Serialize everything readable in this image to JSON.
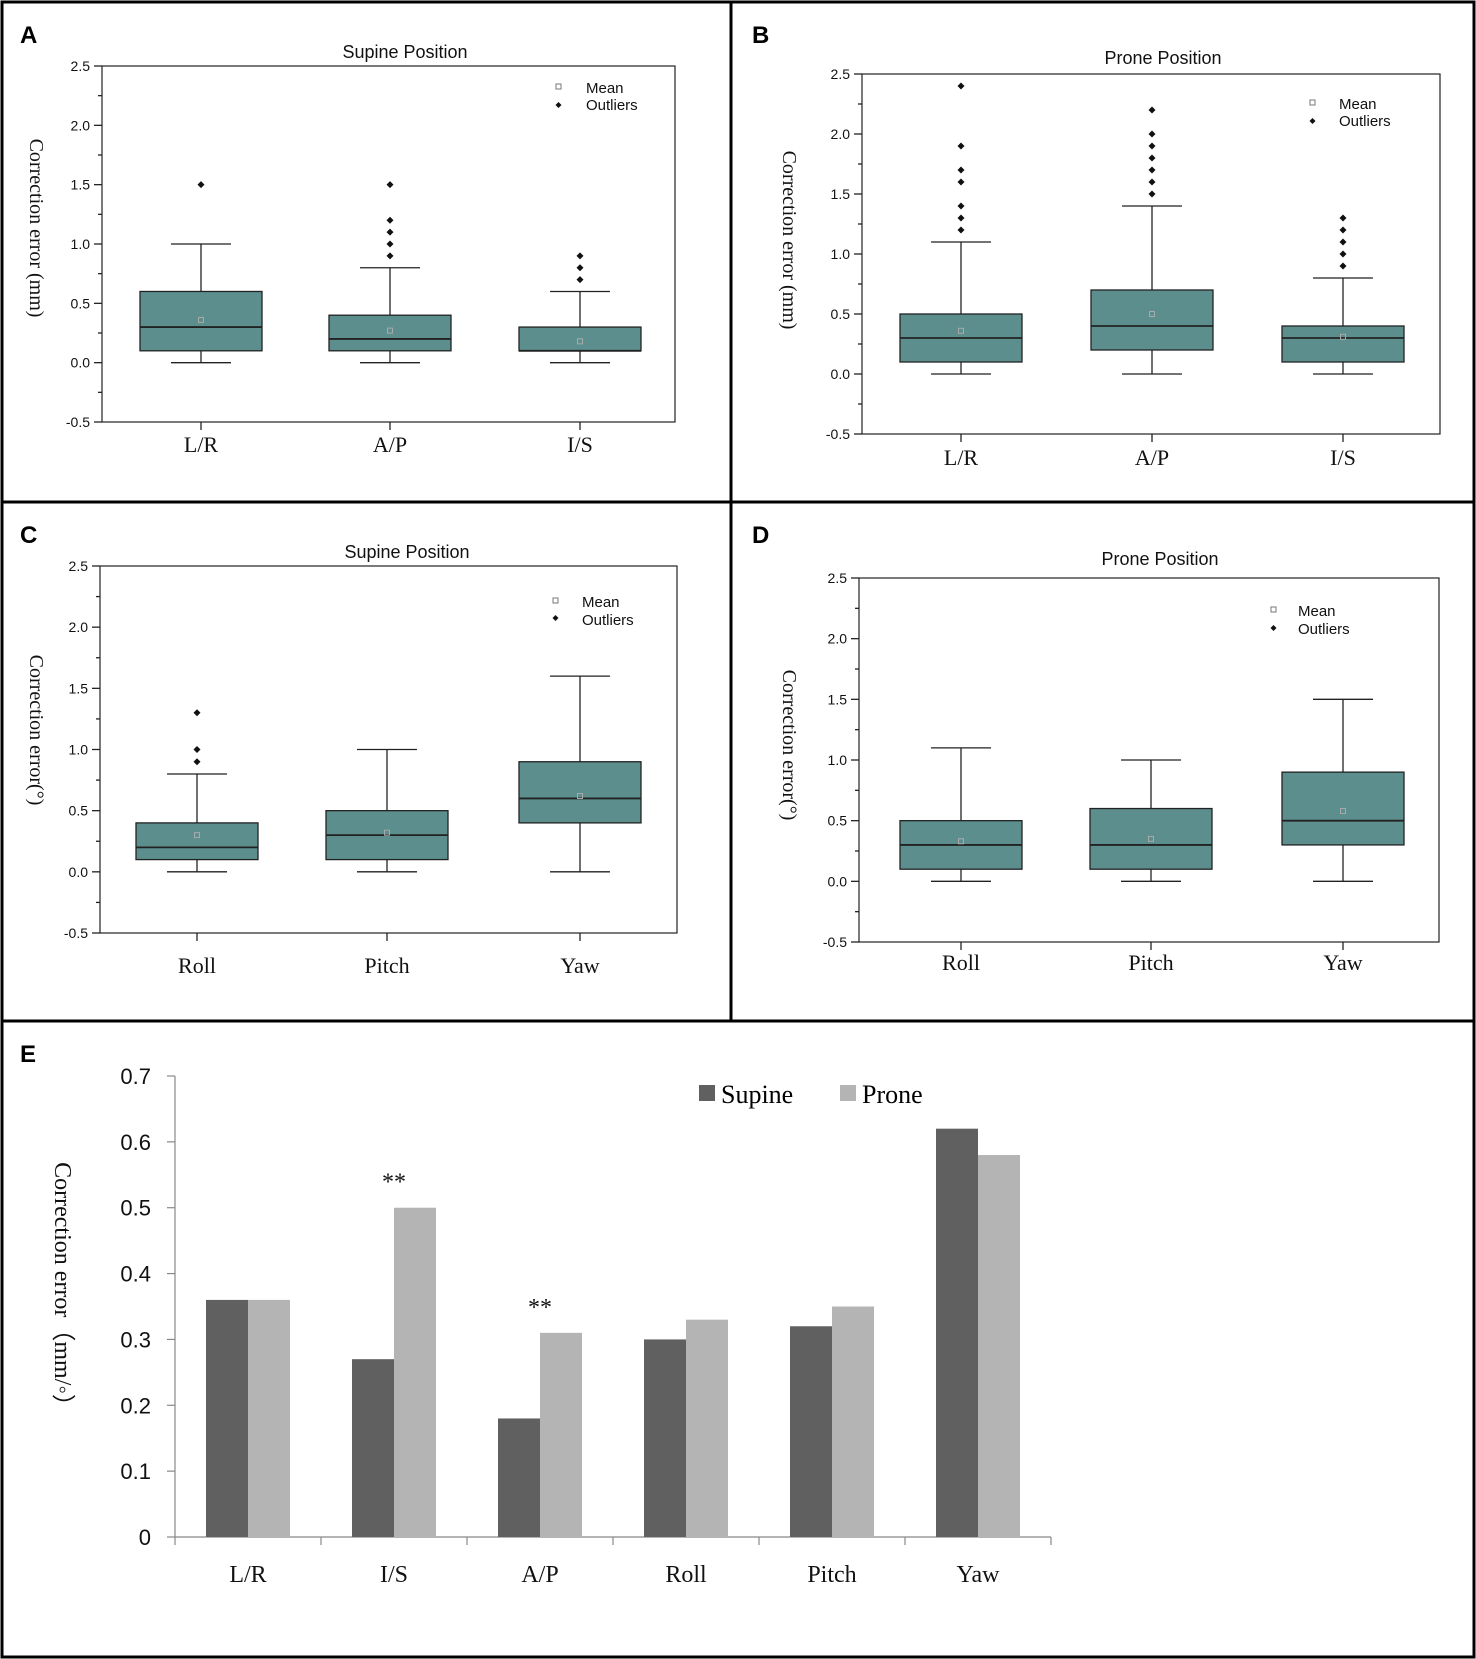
{
  "panels": {
    "A": {
      "letter": "A",
      "title": "Supine Position",
      "ylabel": "Correction error (mm)",
      "legend": {
        "mean": "Mean",
        "outliers": "Outliers"
      }
    },
    "B": {
      "letter": "B",
      "title": "Prone Position",
      "ylabel": "Correction error (mm)",
      "legend": {
        "mean": "Mean",
        "outliers": "Outliers"
      }
    },
    "C": {
      "letter": "C",
      "title": "Supine Position",
      "ylabel": "Correction error(°)",
      "legend": {
        "mean": "Mean",
        "outliers": "Outliers"
      }
    },
    "D": {
      "letter": "D",
      "title": "Prone Position",
      "ylabel": "Correction error(°)",
      "legend": {
        "mean": "Mean",
        "outliers": "Outliers"
      }
    },
    "E": {
      "letter": "E",
      "ylabel": "Correction error（mm/◦）"
    }
  },
  "colors": {
    "box_fill": "#5c8e8e",
    "supine": "#606060",
    "prone": "#b4b4b4"
  },
  "chart_data": [
    {
      "panel": "A",
      "type": "box",
      "title": "Supine Position",
      "ylabel": "Correction error (mm)",
      "ylim": [
        -0.5,
        2.5
      ],
      "yticks": [
        "-0.5",
        "0.0",
        "0.5",
        "1.0",
        "1.5",
        "2.0",
        "2.5"
      ],
      "categories": [
        "L/R",
        "A/P",
        "I/S"
      ],
      "boxes": [
        {
          "q1": 0.1,
          "median": 0.3,
          "q3": 0.6,
          "min": 0.0,
          "max": 1.0,
          "mean": 0.36,
          "outliers": [
            1.5
          ]
        },
        {
          "q1": 0.1,
          "median": 0.2,
          "q3": 0.4,
          "min": 0.0,
          "max": 0.8,
          "mean": 0.27,
          "outliers": [
            0.9,
            1.0,
            1.1,
            1.2,
            1.5
          ]
        },
        {
          "q1": 0.1,
          "median": 0.1,
          "q3": 0.3,
          "min": 0.0,
          "max": 0.6,
          "mean": 0.18,
          "outliers": [
            0.7,
            0.8,
            0.9
          ]
        }
      ]
    },
    {
      "panel": "B",
      "type": "box",
      "title": "Prone Position",
      "ylabel": "Correction error (mm)",
      "ylim": [
        -0.5,
        2.5
      ],
      "yticks": [
        "-0.5",
        "0.0",
        "0.5",
        "1.0",
        "1.5",
        "2.0",
        "2.5"
      ],
      "categories": [
        "L/R",
        "A/P",
        "I/S"
      ],
      "boxes": [
        {
          "q1": 0.1,
          "median": 0.3,
          "q3": 0.5,
          "min": 0.0,
          "max": 1.1,
          "mean": 0.36,
          "outliers": [
            1.2,
            1.3,
            1.4,
            1.6,
            1.7,
            1.9,
            2.4
          ]
        },
        {
          "q1": 0.2,
          "median": 0.4,
          "q3": 0.7,
          "min": 0.0,
          "max": 1.4,
          "mean": 0.5,
          "outliers": [
            1.5,
            1.6,
            1.7,
            1.8,
            1.9,
            2.0,
            2.2
          ]
        },
        {
          "q1": 0.1,
          "median": 0.3,
          "q3": 0.4,
          "min": 0.0,
          "max": 0.8,
          "mean": 0.31,
          "outliers": [
            0.9,
            1.0,
            1.1,
            1.2,
            1.3
          ]
        }
      ]
    },
    {
      "panel": "C",
      "type": "box",
      "title": "Supine Position",
      "ylabel": "Correction error(°)",
      "ylim": [
        -0.5,
        2.5
      ],
      "yticks": [
        "-0.5",
        "0.0",
        "0.5",
        "1.0",
        "1.5",
        "2.0",
        "2.5"
      ],
      "categories": [
        "Roll",
        "Pitch",
        "Yaw"
      ],
      "boxes": [
        {
          "q1": 0.1,
          "median": 0.2,
          "q3": 0.4,
          "min": 0.0,
          "max": 0.8,
          "mean": 0.3,
          "outliers": [
            0.9,
            1.0,
            1.3
          ]
        },
        {
          "q1": 0.1,
          "median": 0.3,
          "q3": 0.5,
          "min": 0.0,
          "max": 1.0,
          "mean": 0.32,
          "outliers": []
        },
        {
          "q1": 0.4,
          "median": 0.6,
          "q3": 0.9,
          "min": 0.0,
          "max": 1.6,
          "mean": 0.62,
          "outliers": []
        }
      ]
    },
    {
      "panel": "D",
      "type": "box",
      "title": "Prone Position",
      "ylabel": "Correction error(°)",
      "ylim": [
        -0.5,
        2.5
      ],
      "yticks": [
        "-0.5",
        "0.0",
        "0.5",
        "1.0",
        "1.5",
        "2.0",
        "2.5"
      ],
      "categories": [
        "Roll",
        "Pitch",
        "Yaw"
      ],
      "boxes": [
        {
          "q1": 0.1,
          "median": 0.3,
          "q3": 0.5,
          "min": 0.0,
          "max": 1.1,
          "mean": 0.33,
          "outliers": []
        },
        {
          "q1": 0.1,
          "median": 0.3,
          "q3": 0.6,
          "min": 0.0,
          "max": 1.0,
          "mean": 0.35,
          "outliers": []
        },
        {
          "q1": 0.3,
          "median": 0.5,
          "q3": 0.9,
          "min": 0.0,
          "max": 1.5,
          "mean": 0.58,
          "outliers": []
        }
      ]
    },
    {
      "panel": "E",
      "type": "bar",
      "ylabel": "Correction error（mm/◦）",
      "ylim": [
        0,
        0.7
      ],
      "yticks": [
        "0",
        "0.1",
        "0.2",
        "0.3",
        "0.4",
        "0.5",
        "0.6",
        "0.7"
      ],
      "categories": [
        "L/R",
        "I/S",
        "A/P",
        "Roll",
        "Pitch",
        "Yaw"
      ],
      "series": [
        {
          "name": "Supine",
          "values": [
            0.36,
            0.27,
            0.18,
            0.3,
            0.32,
            0.62
          ]
        },
        {
          "name": "Prone",
          "values": [
            0.36,
            0.5,
            0.31,
            0.33,
            0.35,
            0.58
          ]
        }
      ],
      "annotations": [
        {
          "category": "I/S",
          "text": "**"
        },
        {
          "category": "A/P",
          "text": "**"
        }
      ]
    }
  ]
}
